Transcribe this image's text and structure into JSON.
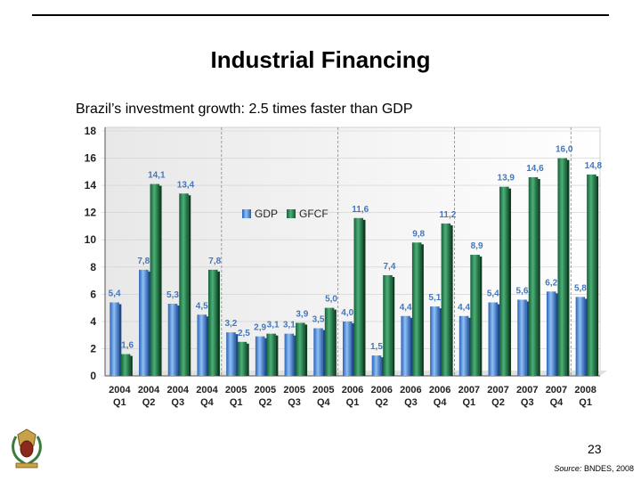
{
  "header": {
    "title": "Industrial Financing",
    "subtitle": "Brazil’s investment growth: 2.5 times faster than GDP"
  },
  "footer": {
    "page_number": "23",
    "source_label": "Source:",
    "source_value": "BNDES, 2008"
  },
  "colors": {
    "gdp": "#4a90e2",
    "gfcf": "#2e8b57",
    "label_text": "#4477bb",
    "grid": "#cfcfcf"
  },
  "chart_data": {
    "type": "bar",
    "title": "Brazil’s investment growth: 2.5 times faster than GDP",
    "ylim": [
      0,
      18
    ],
    "yticks": [
      0,
      2,
      4,
      6,
      8,
      10,
      12,
      14,
      16,
      18
    ],
    "legend": {
      "position": "upper-left",
      "entries": [
        "GDP",
        "GFCF"
      ]
    },
    "categories": [
      [
        "2004",
        "Q1"
      ],
      [
        "2004",
        "Q2"
      ],
      [
        "2004",
        "Q3"
      ],
      [
        "2004",
        "Q4"
      ],
      [
        "2005",
        "Q1"
      ],
      [
        "2005",
        "Q2"
      ],
      [
        "2005",
        "Q3"
      ],
      [
        "2005",
        "Q4"
      ],
      [
        "2006",
        "Q1"
      ],
      [
        "2006",
        "Q2"
      ],
      [
        "2006",
        "Q3"
      ],
      [
        "2006",
        "Q4"
      ],
      [
        "2007",
        "Q1"
      ],
      [
        "2007",
        "Q2"
      ],
      [
        "2007",
        "Q3"
      ],
      [
        "2007",
        "Q4"
      ],
      [
        "2008",
        "Q1"
      ]
    ],
    "series": [
      {
        "name": "GDP",
        "values": [
          5.4,
          7.8,
          5.3,
          4.5,
          3.2,
          2.9,
          3.1,
          3.5,
          4.0,
          1.5,
          4.4,
          5.1,
          4.4,
          5.4,
          5.6,
          6.2,
          5.8
        ],
        "labels": [
          "5,4",
          "7,8",
          "5,3",
          "4,5",
          "3,2",
          "2,9",
          "3,1",
          "3,5",
          "4,0",
          "1,5",
          "4,4",
          "5,1",
          "4,4",
          "5,4",
          "5,6",
          "6,2",
          "5,8"
        ]
      },
      {
        "name": "GFCF",
        "values": [
          1.6,
          14.1,
          13.4,
          7.8,
          2.5,
          3.1,
          3.9,
          5.0,
          11.6,
          7.4,
          9.8,
          11.2,
          8.9,
          13.9,
          14.6,
          16.0,
          14.8
        ],
        "labels": [
          "1,6",
          "14,1",
          "13,4",
          "7,8",
          "2,5",
          "3,1",
          "3,9",
          "5,0",
          "11,6",
          "7,4",
          "9,8",
          "11,2",
          "8,9",
          "13,9",
          "14,6",
          "16,0",
          "14,8"
        ]
      }
    ]
  }
}
